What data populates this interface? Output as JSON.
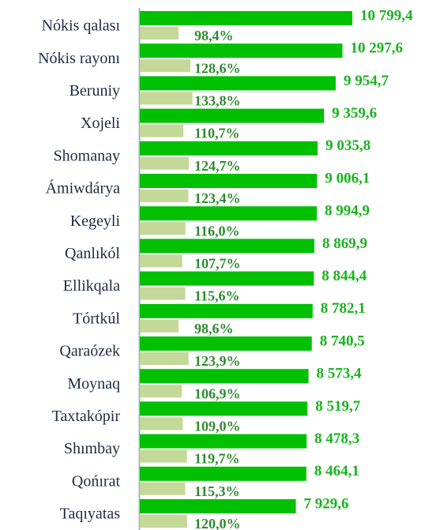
{
  "chart_data": {
    "type": "bar",
    "orientation": "horizontal",
    "categories": [
      "Nókis qalası",
      "Nókis rayonı",
      "Beruniy",
      "Xojeli",
      "Shomanay",
      "Ámiwdárya",
      "Kegeyli",
      "Qanlıkól",
      "Ellikqala",
      "Tórtkúl",
      "Qaraózek",
      "Moynaq",
      "Taxtakópir",
      "Shımbay",
      "Qońırat",
      "Taqıyatas"
    ],
    "series": [
      {
        "color": "#00c000",
        "values": [
          10799.4,
          10297.6,
          9954.7,
          9359.6,
          9035.8,
          9006.1,
          8994.9,
          8869.9,
          8844.4,
          8782.1,
          8740.5,
          8573.4,
          8519.7,
          8478.3,
          8464.1,
          7929.6
        ],
        "value_labels": [
          "10 799,4",
          "10 297,6",
          "9 954,7",
          "9 359,6",
          "9 035,8",
          "9 006,1",
          "8 994,9",
          "8 869,9",
          "8 844,4",
          "8 782,1",
          "8 740,5",
          "8 573,4",
          "8 519,7",
          "8 478,3",
          "8 464,1",
          "7 929,6"
        ]
      },
      {
        "color": "#c4d898",
        "axis": "x2",
        "values": [
          98.4,
          128.6,
          133.8,
          110.7,
          124.7,
          123.4,
          116.0,
          107.7,
          115.6,
          98.6,
          123.9,
          106.9,
          109.0,
          119.7,
          115.3,
          120.0
        ],
        "value_labels": [
          "98,4%",
          "128,6%",
          "133,8%",
          "110,7%",
          "124,7%",
          "123,4%",
          "116,0%",
          "107,7%",
          "115,6%",
          "98,6%",
          "123,9%",
          "106,9%",
          "109,0%",
          "119,7%",
          "115,3%",
          "120,0%"
        ]
      }
    ],
    "xlim": [
      0,
      11000
    ],
    "x2lim": [
      0,
      550
    ]
  }
}
